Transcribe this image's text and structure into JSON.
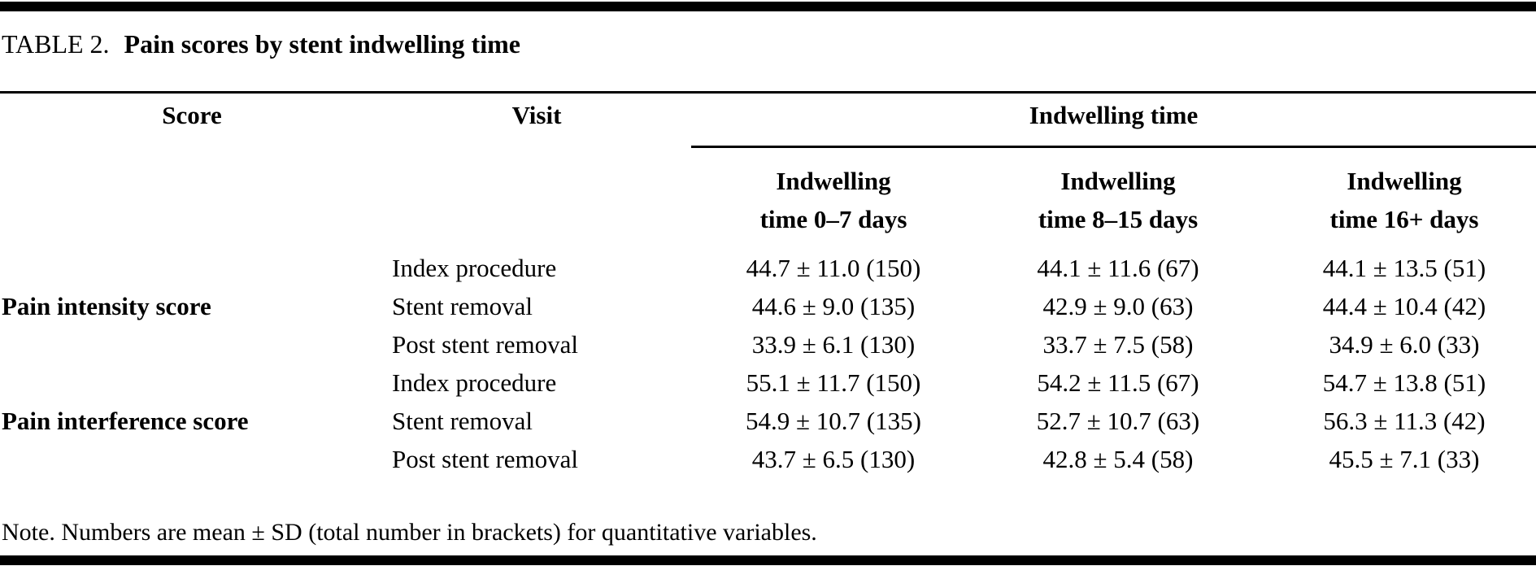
{
  "title": {
    "prefix": "TABLE 2.",
    "text": "Pain scores by stent indwelling time"
  },
  "table": {
    "col_score": "Score",
    "col_visit": "Visit",
    "col_group": "Indwelling time",
    "subcols": [
      {
        "line1": "Indwelling",
        "line2": "time 0–7 days"
      },
      {
        "line1": "Indwelling",
        "line2": "time 8–15 days"
      },
      {
        "line1": "Indwelling",
        "line2": "time 16+ days"
      }
    ],
    "groups": [
      {
        "label": "Pain intensity score"
      },
      {
        "label": "Pain interference score"
      }
    ],
    "rows": [
      {
        "visit": "Index procedure",
        "v1": "44.7 ± 11.0 (150)",
        "v2": "44.1 ± 11.6 (67)",
        "v3": "44.1 ± 13.5 (51)"
      },
      {
        "visit": "Stent removal",
        "v1": "44.6 ± 9.0 (135)",
        "v2": "42.9 ± 9.0 (63)",
        "v3": "44.4 ± 10.4 (42)"
      },
      {
        "visit": "Post stent removal",
        "v1": "33.9 ± 6.1 (130)",
        "v2": "33.7 ± 7.5 (58)",
        "v3": "34.9 ± 6.0 (33)"
      },
      {
        "visit": "Index procedure",
        "v1": "55.1 ± 11.7 (150)",
        "v2": "54.2 ± 11.5 (67)",
        "v3": "54.7 ± 13.8 (51)"
      },
      {
        "visit": "Stent removal",
        "v1": "54.9 ± 10.7 (135)",
        "v2": "52.7 ± 10.7 (63)",
        "v3": "56.3 ± 11.3 (42)"
      },
      {
        "visit": "Post stent removal",
        "v1": "43.7 ± 6.5 (130)",
        "v2": "42.8 ± 5.4 (58)",
        "v3": "45.5 ± 7.1 (33)"
      }
    ]
  },
  "note": "Note. Numbers are mean ± SD (total number in brackets) for quantitative variables.",
  "colors": {
    "text": "#000000",
    "background": "#ffffff",
    "rule": "#000000"
  },
  "chart_data": {
    "type": "table",
    "title": "TABLE 2. Pain scores by stent indwelling time",
    "columns": [
      "Score",
      "Visit",
      "Indwelling time 0–7 days",
      "Indwelling time 8–15 days",
      "Indwelling time 16+ days"
    ],
    "rows": [
      [
        "Pain intensity score",
        "Index procedure",
        "44.7 ± 11.0 (150)",
        "44.1 ± 11.6 (67)",
        "44.1 ± 13.5 (51)"
      ],
      [
        "Pain intensity score",
        "Stent removal",
        "44.6 ± 9.0 (135)",
        "42.9 ± 9.0 (63)",
        "44.4 ± 10.4 (42)"
      ],
      [
        "Pain intensity score",
        "Post stent removal",
        "33.9 ± 6.1 (130)",
        "33.7 ± 7.5 (58)",
        "34.9 ± 6.0 (33)"
      ],
      [
        "Pain interference score",
        "Index procedure",
        "55.1 ± 11.7 (150)",
        "54.2 ± 11.5 (67)",
        "54.7 ± 13.8 (51)"
      ],
      [
        "Pain interference score",
        "Stent removal",
        "54.9 ± 10.7 (135)",
        "52.7 ± 10.7 (63)",
        "56.3 ± 11.3 (42)"
      ],
      [
        "Pain interference score",
        "Post stent removal",
        "43.7 ± 6.5 (130)",
        "42.8 ± 5.4 (58)",
        "45.5 ± 7.1 (33)"
      ]
    ]
  }
}
